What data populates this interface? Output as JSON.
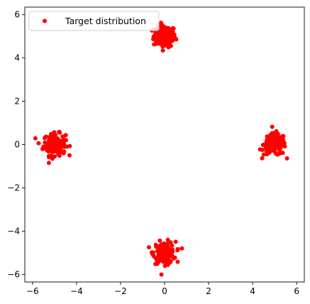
{
  "chart_data": {
    "type": "scatter",
    "title": "",
    "xlabel": "",
    "ylabel": "",
    "xlim": [
      -6.35,
      6.35
    ],
    "ylim": [
      -6.35,
      6.35
    ],
    "xticks": [
      -6,
      -4,
      -2,
      0,
      2,
      4,
      6
    ],
    "yticks": [
      -6,
      -4,
      -2,
      0,
      2,
      4,
      6
    ],
    "xtick_labels": [
      "−6",
      "−4",
      "−2",
      "0",
      "2",
      "4",
      "6"
    ],
    "ytick_labels": [
      "−6",
      "−4",
      "−2",
      "0",
      "2",
      "4",
      "6"
    ],
    "grid": false,
    "legend": {
      "position": "upper-left",
      "entries": [
        "Target distribution"
      ]
    },
    "series": [
      {
        "name": "Target distribution",
        "color": "#ff0000",
        "marker": "circle",
        "clusters": [
          {
            "center": [
              0,
              5
            ],
            "spread": 0.25,
            "count": 150
          },
          {
            "center": [
              -5,
              0
            ],
            "spread": 0.25,
            "count": 150
          },
          {
            "center": [
              5,
              0
            ],
            "spread": 0.25,
            "count": 150
          },
          {
            "center": [
              0,
              -5
            ],
            "spread": 0.25,
            "count": 150
          }
        ]
      }
    ]
  }
}
